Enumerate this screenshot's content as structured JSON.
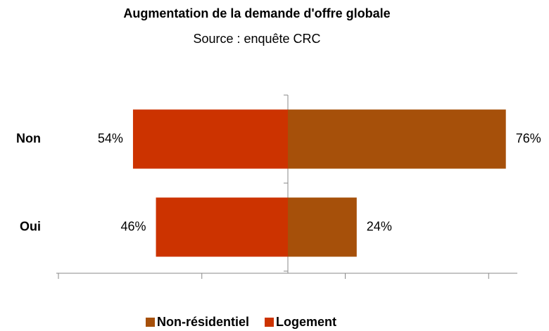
{
  "chart_data": {
    "type": "bar",
    "orientation": "horizontal",
    "title": "Augmentation de la demande d'offre globale",
    "subtitle": "Source : enquête CRC",
    "categories": [
      "Non",
      "Oui"
    ],
    "series": [
      {
        "name": "Non-résidentiel",
        "color": "#a6500a",
        "values": [
          76,
          24
        ],
        "value_labels": [
          "76%",
          "24%"
        ]
      },
      {
        "name": "Logement",
        "color": "#cc3300",
        "values": [
          -54,
          -46
        ],
        "value_labels": [
          "54%",
          "46%"
        ]
      }
    ],
    "xlim": [
      -80,
      80
    ],
    "xticks": [
      -80,
      -30,
      20,
      70
    ],
    "legend": "bottom"
  }
}
